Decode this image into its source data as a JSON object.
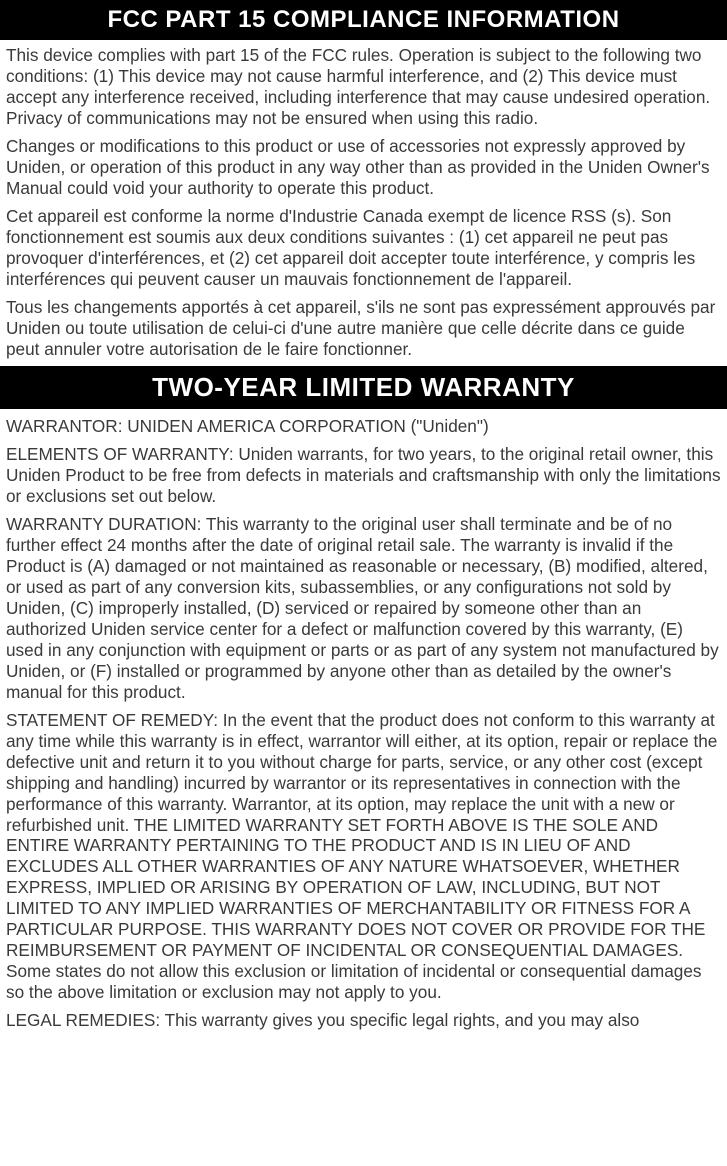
{
  "section1": {
    "header": "FCC PART 15 COMPLIANCE INFORMATION",
    "p1": "This device complies with part 15 of the FCC rules. Operation is subject to the following two conditions: (1) This device may not cause harmful interference, and (2) This device must accept any interference received, including interference that may cause undesired operation. Privacy of communications may not be ensured when using this radio.",
    "p2": "Changes or modifications to this product or use of accessories not expressly approved by Uniden, or operation of this product in any way other than as provided in the Uniden Owner's Manual could void your authority to operate this product.",
    "p3": "Cet appareil est conforme la norme d'Industrie Canada exempt de licence RSS (s). Son fonctionnement est soumis aux deux conditions suivantes : (1) cet appareil ne peut pas provoquer d'interférences, et (2) cet appareil doit accepter toute interférence, y compris les interférences qui peuvent causer un mauvais fonctionnement de l'appareil.",
    "p4": "Tous les changements apportés à cet appareil, s'ils ne sont pas expressément approuvés par Uniden ou toute utilisation de celui-ci d'une autre manière que celle décrite dans ce guide peut annuler votre autorisation de le faire fonctionner."
  },
  "section2": {
    "header": "TWO-YEAR LIMITED WARRANTY",
    "p1": "WARRANTOR: UNIDEN AMERICA CORPORATION (\"Uniden\")",
    "p2": "ELEMENTS OF WARRANTY: Uniden warrants, for two years, to the original retail owner, this Uniden Product to be free from defects in materials and craftsmanship with only the limitations or exclusions set out below.",
    "p3": "WARRANTY DURATION: This warranty to the original user shall terminate and be of no further effect 24 months after the date of original retail sale. The warranty is invalid if the Product is (A) damaged or not maintained as reasonable or necessary, (B) modified, altered, or used as part of any conversion kits, subassemblies, or any configurations not sold by Uniden, (C) improperly installed, (D) serviced or repaired by someone other than an authorized Uniden service center for a defect or malfunction covered by this warranty, (E) used in any conjunction with equipment or parts or as part of any system not manufactured by Uniden, or (F) installed or programmed by anyone other than as detailed by the owner's manual for this product.",
    "p4": "STATEMENT OF REMEDY: In the event that the product does not conform to this warranty at any time while this warranty is in effect, warrantor will either, at its option, repair or replace the defective unit and return it to you without charge for parts, service, or any other cost (except shipping and handling) incurred by warrantor or its representatives in connection with the performance of this warranty. Warrantor, at its option, may replace the unit with a new or refurbished unit. THE LIMITED WARRANTY SET FORTH ABOVE IS THE SOLE AND ENTIRE WARRANTY PERTAINING TO THE PRODUCT AND IS IN LIEU OF AND EXCLUDES ALL OTHER WARRANTIES OF ANY NATURE WHATSOEVER, WHETHER EXPRESS, IMPLIED OR ARISING BY OPERATION OF LAW, INCLUDING, BUT NOT LIMITED TO ANY IMPLIED WARRANTIES OF MERCHANTABILITY OR FITNESS FOR A PARTICULAR PURPOSE. THIS WARRANTY DOES NOT COVER OR PROVIDE FOR THE REIMBURSEMENT OR PAYMENT OF INCIDENTAL OR CONSEQUENTIAL DAMAGES. Some states do not allow this exclusion or limitation of incidental or consequential damages so the above limitation or exclusion may not apply to you.",
    "p5": "LEGAL REMEDIES: This warranty gives you specific legal rights, and you may also"
  },
  "colors": {
    "header_bg": "#000000",
    "header_text": "#ffffff",
    "body_text": "#3a3a3a",
    "page_bg": "#ffffff"
  },
  "typography": {
    "font_family": "Arial, Helvetica, sans-serif",
    "header1_fontsize": 24,
    "header2_fontsize": 26,
    "body_fontsize": 17.2,
    "body_lineheight": 1.22
  }
}
